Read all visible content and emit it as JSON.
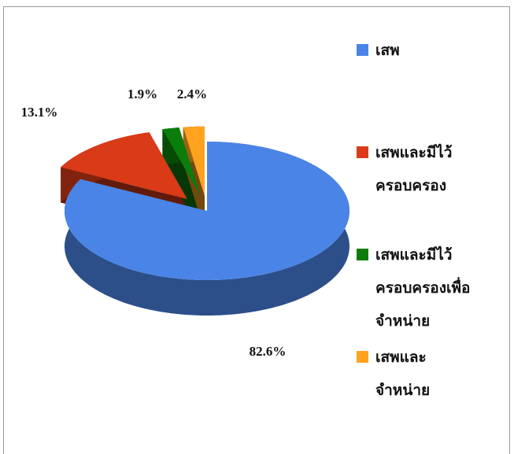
{
  "chart_data": {
    "type": "pie",
    "series": [
      {
        "name": "เสพ",
        "color": "#4a84e6",
        "values": [
          82.6
        ],
        "value_labels": [
          "82.6%"
        ]
      },
      {
        "name": "เสพและมีไว้ครอบครอง",
        "color": "#d93a17",
        "values": [
          13.1
        ],
        "value_labels": [
          "13.1%"
        ]
      },
      {
        "name": "เสพและมีไว้ครอบครองเพื่อจำหน่าย",
        "color": "#0b7d0b",
        "values": [
          1.9
        ],
        "value_labels": [
          "1.9%"
        ]
      },
      {
        "name": "เสพและจำหน่าย",
        "color": "#ffa21f",
        "values": [
          2.4
        ],
        "value_labels": [
          "2.4%"
        ]
      }
    ],
    "legend": "right"
  }
}
